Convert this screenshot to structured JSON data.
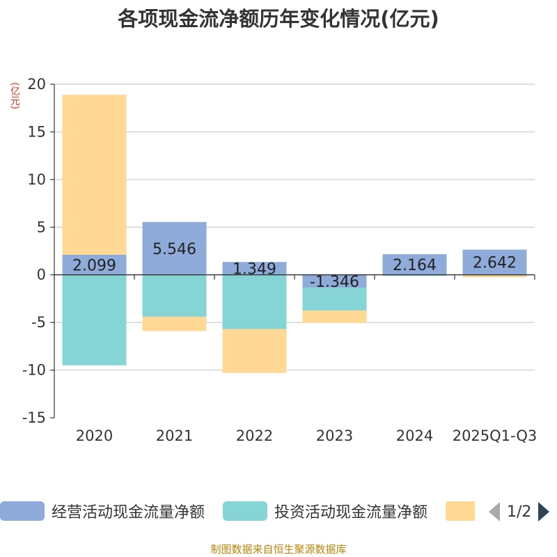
{
  "chart_data": {
    "type": "bar",
    "stacked": true,
    "title": "各项现金流净额历年变化情况(亿元)",
    "ylabel": "(亿元)",
    "categories": [
      "2020",
      "2021",
      "2022",
      "2023",
      "2024",
      "2025Q1-Q3"
    ],
    "ylim": [
      -15,
      20
    ],
    "yticks": [
      20,
      15,
      10,
      5,
      0,
      -5,
      -10,
      -15
    ],
    "series": [
      {
        "name": "经营活动现金流量净额",
        "color": "#8eabd9",
        "values": [
          2.099,
          5.546,
          1.349,
          -1.346,
          2.164,
          2.642
        ],
        "labels": [
          "2.099",
          "5.546",
          "1.349",
          "-1.346",
          "2.164",
          "2.642"
        ]
      },
      {
        "name": "投资活动现金流量净额",
        "color": "#86d4d6",
        "values": [
          -9.5,
          -4.4,
          -5.7,
          -2.4,
          -0.05,
          -0.05
        ]
      },
      {
        "name": "",
        "color": "#fed894",
        "values": [
          16.8,
          -1.5,
          -4.6,
          -1.3,
          0.0,
          -0.2
        ]
      }
    ],
    "grid": true,
    "legend_position": "bottom"
  },
  "legend": {
    "pager_text": "1/2"
  },
  "source": "制图数据来自恒生聚源数据库"
}
